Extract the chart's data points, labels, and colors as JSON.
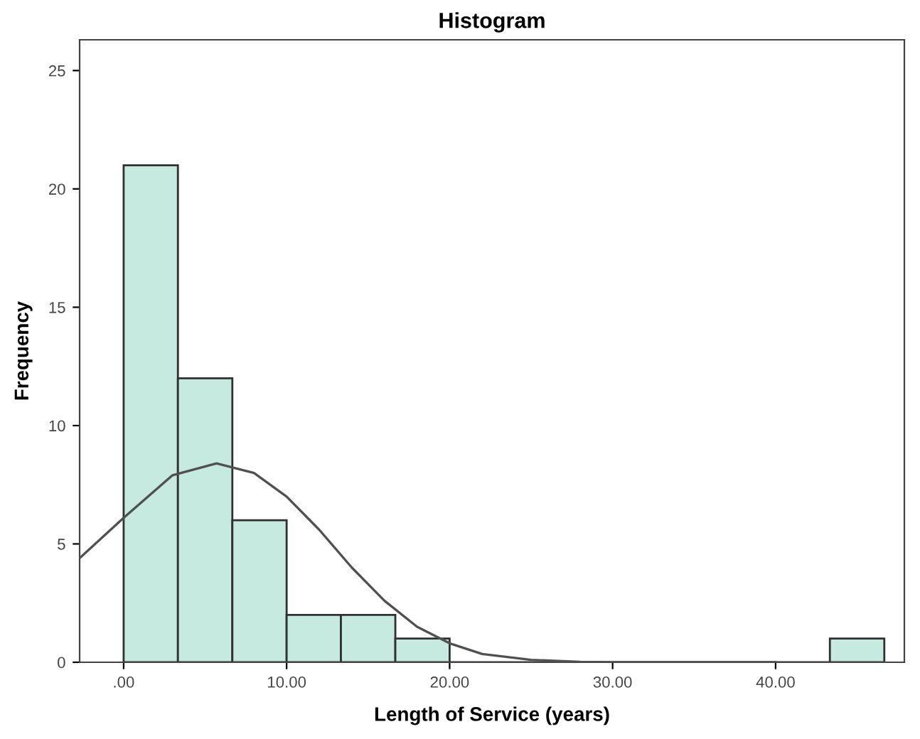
{
  "chart_data": {
    "type": "histogram",
    "title": "Histogram",
    "xlabel": "Length of Service (years)",
    "ylabel": "Frequency",
    "bins": [
      0,
      3.33,
      6.67,
      10,
      13.33,
      16.67,
      20,
      23.33,
      26.67,
      30,
      33.33,
      36.67,
      40,
      43.33,
      46.67
    ],
    "series": [
      {
        "color": "#c6e9e0",
        "values": [
          21,
          12,
          6,
          2,
          2,
          1,
          0,
          0,
          0,
          0,
          0,
          0,
          0,
          1
        ]
      },
      {
        "type": "line",
        "color": "#505050",
        "x": [
          -2.7,
          0,
          3,
          5.7,
          8,
          10,
          12,
          14,
          16,
          18,
          20,
          22,
          25,
          28,
          30,
          35,
          40
        ],
        "values": [
          4.4,
          6.1,
          7.9,
          8.4,
          8.0,
          7.0,
          5.6,
          4.0,
          2.6,
          1.5,
          0.8,
          0.35,
          0.1,
          0.02,
          0,
          0,
          0
        ]
      }
    ],
    "xlim": [
      -2.7,
      47.9
    ],
    "ylim": [
      0,
      26.3
    ],
    "xticks": [
      {
        "value": 0,
        "label": ".00"
      },
      {
        "value": 10,
        "label": "10.00"
      },
      {
        "value": 20,
        "label": "20.00"
      },
      {
        "value": 30,
        "label": "30.00"
      },
      {
        "value": 40,
        "label": "40.00"
      }
    ],
    "yticks": [
      0,
      5,
      10,
      15,
      20,
      25
    ],
    "grid": false,
    "legend": false
  }
}
